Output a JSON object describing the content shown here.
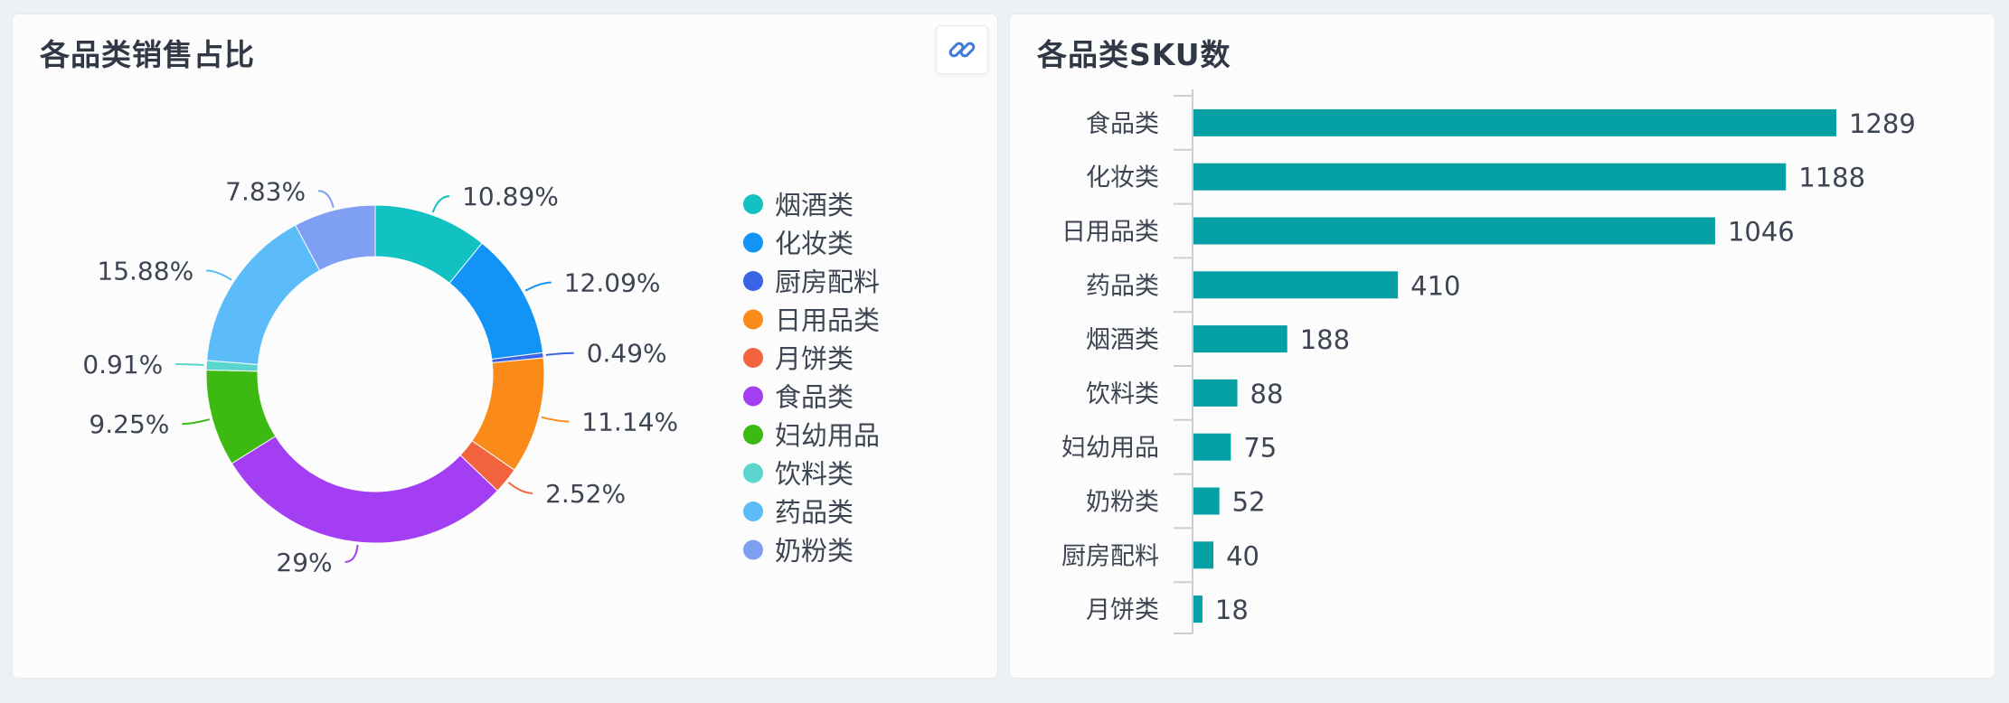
{
  "left": {
    "title": "各品类销售占比",
    "link_icon": "link-icon",
    "link_color": "#3f7bd6"
  },
  "right": {
    "title": "各品类SKU数"
  },
  "chart_data": [
    {
      "type": "pie",
      "variant": "donut",
      "title": "各品类销售占比",
      "legend_position": "right",
      "slices": [
        {
          "label": "烟酒类",
          "value": 10.89,
          "display": "10.89%",
          "color": "#12c1c1"
        },
        {
          "label": "化妆类",
          "value": 12.09,
          "display": "12.09%",
          "color": "#1294f7"
        },
        {
          "label": "厨房配料",
          "value": 0.49,
          "display": "0.49%",
          "color": "#3a63e6"
        },
        {
          "label": "日用品类",
          "value": 11.14,
          "display": "11.14%",
          "color": "#fb8b18"
        },
        {
          "label": "月饼类",
          "value": 2.52,
          "display": "2.52%",
          "color": "#f2643e"
        },
        {
          "label": "食品类",
          "value": 29,
          "display": "29%",
          "color": "#a33ef2"
        },
        {
          "label": "妇幼用品",
          "value": 9.25,
          "display": "9.25%",
          "color": "#3cba12"
        },
        {
          "label": "饮料类",
          "value": 0.91,
          "display": "0.91%",
          "color": "#5bd6cf"
        },
        {
          "label": "药品类",
          "value": 15.88,
          "display": "15.88%",
          "color": "#5bbcf9"
        },
        {
          "label": "奶粉类",
          "value": 7.83,
          "display": "7.83%",
          "color": "#7f9ff3"
        }
      ]
    },
    {
      "type": "bar",
      "orientation": "horizontal",
      "title": "各品类SKU数",
      "bar_color": "#05a0a3",
      "categories": [
        "食品类",
        "化妆类",
        "日用品类",
        "药品类",
        "烟酒类",
        "饮料类",
        "妇幼用品",
        "奶粉类",
        "厨房配料",
        "月饼类"
      ],
      "values": [
        1289,
        1188,
        1046,
        410,
        188,
        88,
        75,
        52,
        40,
        18
      ],
      "xlim": [
        0,
        1289
      ]
    }
  ]
}
